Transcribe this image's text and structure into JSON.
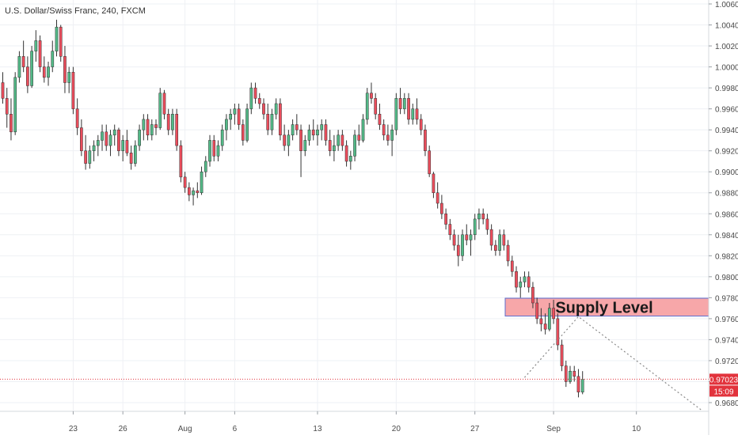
{
  "chart_data": {
    "type": "candlestick",
    "title": "U.S. Dollar/Swiss Franc, 240, FXCM",
    "symbol": "USDCHF",
    "timeframe": "240",
    "source": "FXCM",
    "x_ticks": [
      "23",
      "26",
      "Aug",
      "6",
      "13",
      "20",
      "27",
      "Sep",
      "10"
    ],
    "y_ticks": [
      "1.00600",
      "1.00400",
      "1.00200",
      "1.00000",
      "0.99800",
      "0.99600",
      "0.99400",
      "0.99200",
      "0.99000",
      "0.98800",
      "0.98600",
      "0.98400",
      "0.98200",
      "0.98000",
      "0.97800",
      "0.97600",
      "0.97400",
      "0.97200",
      "0.97000",
      "0.96800"
    ],
    "ylim": [
      0.9663,
      1.0063
    ],
    "grid": true,
    "current_price": 0.97023,
    "current_price_label": "0.97023",
    "countdown_label": "15:09",
    "annotation": {
      "label": "Supply Level",
      "price_low": 0.97625,
      "price_high": 0.97795
    },
    "projection": [
      {
        "bar": 126,
        "price": 0.9704
      },
      {
        "bar": 139,
        "price": 0.9762
      },
      {
        "bar": 169,
        "price": 0.9672
      }
    ],
    "colors": {
      "up": "#53b987",
      "down": "#eb4d5c",
      "supply_fill": "#f7a7a9",
      "supply_border": "#5b6dcf",
      "price_line": "#e2333c",
      "grid": "#eef0f4",
      "axis_text": "#4a4a4a"
    },
    "tick_bar_index": {
      "23": 17,
      "26": 29,
      "Aug": 44,
      "6": 56,
      "13": 76,
      "20": 95,
      "27": 114,
      "Sep": 133,
      "10": 153
    },
    "candles": [
      [
        0.9985,
        0.9995,
        0.9965,
        0.997
      ],
      [
        0.997,
        0.998,
        0.9942,
        0.9955
      ],
      [
        0.9955,
        0.997,
        0.993,
        0.9938
      ],
      [
        0.9938,
        0.9995,
        0.9935,
        0.999
      ],
      [
        0.999,
        1.0015,
        0.9985,
        1.001
      ],
      [
        1.001,
        1.0025,
        0.9995,
        1.0
      ],
      [
        1.0,
        1.001,
        0.9975,
        0.9982
      ],
      [
        0.9982,
        1.002,
        0.998,
        1.0015
      ],
      [
        1.0015,
        1.0035,
        1.0005,
        1.0025
      ],
      [
        1.0025,
        1.003,
        0.9995,
        1.0
      ],
      [
        1.0,
        1.001,
        0.9985,
        0.999
      ],
      [
        0.999,
        1.0005,
        0.9982,
        1.0
      ],
      [
        1.0,
        1.0025,
        0.9995,
        1.0015
      ],
      [
        1.0015,
        1.0045,
        1.001,
        1.0038
      ],
      [
        1.0038,
        1.004,
        1.0005,
        1.001
      ],
      [
        1.001,
        1.002,
        0.9975,
        0.9985
      ],
      [
        0.9985,
        1.0,
        0.9975,
        0.9995
      ],
      [
        0.9995,
        1.0,
        0.9955,
        0.996
      ],
      [
        0.996,
        0.997,
        0.9935,
        0.9942
      ],
      [
        0.9942,
        0.995,
        0.9915,
        0.992
      ],
      [
        0.992,
        0.9935,
        0.9902,
        0.9908
      ],
      [
        0.9908,
        0.9925,
        0.9903,
        0.992
      ],
      [
        0.992,
        0.993,
        0.991,
        0.9925
      ],
      [
        0.9925,
        0.9935,
        0.9915,
        0.993
      ],
      [
        0.993,
        0.9945,
        0.992,
        0.9938
      ],
      [
        0.9938,
        0.9945,
        0.992,
        0.9925
      ],
      [
        0.9925,
        0.994,
        0.9915,
        0.9935
      ],
      [
        0.9935,
        0.9945,
        0.9925,
        0.994
      ],
      [
        0.994,
        0.9942,
        0.9915,
        0.992
      ],
      [
        0.992,
        0.9935,
        0.991,
        0.993
      ],
      [
        0.993,
        0.994,
        0.9915,
        0.9918
      ],
      [
        0.9918,
        0.9925,
        0.9902,
        0.9908
      ],
      [
        0.9908,
        0.993,
        0.9905,
        0.9925
      ],
      [
        0.9925,
        0.9945,
        0.992,
        0.994
      ],
      [
        0.994,
        0.9955,
        0.993,
        0.995
      ],
      [
        0.995,
        0.9955,
        0.993,
        0.9935
      ],
      [
        0.9935,
        0.995,
        0.993,
        0.9945
      ],
      [
        0.9945,
        0.995,
        0.9935,
        0.9942
      ],
      [
        0.9942,
        0.998,
        0.994,
        0.9975
      ],
      [
        0.9975,
        0.9978,
        0.995,
        0.9955
      ],
      [
        0.9955,
        0.996,
        0.9935,
        0.994
      ],
      [
        0.994,
        0.996,
        0.9935,
        0.9955
      ],
      [
        0.9955,
        0.996,
        0.992,
        0.9925
      ],
      [
        0.9925,
        0.993,
        0.989,
        0.9895
      ],
      [
        0.9895,
        0.99,
        0.988,
        0.9885
      ],
      [
        0.9885,
        0.989,
        0.9872,
        0.9878
      ],
      [
        0.9878,
        0.9885,
        0.9868,
        0.9882
      ],
      [
        0.9882,
        0.989,
        0.9875,
        0.988
      ],
      [
        0.988,
        0.9905,
        0.9878,
        0.99
      ],
      [
        0.99,
        0.9915,
        0.9895,
        0.991
      ],
      [
        0.991,
        0.9935,
        0.9905,
        0.993
      ],
      [
        0.993,
        0.9935,
        0.991,
        0.9915
      ],
      [
        0.9915,
        0.993,
        0.991,
        0.9925
      ],
      [
        0.9925,
        0.9945,
        0.992,
        0.994
      ],
      [
        0.994,
        0.9955,
        0.993,
        0.995
      ],
      [
        0.995,
        0.996,
        0.994,
        0.9955
      ],
      [
        0.9955,
        0.9965,
        0.9945,
        0.996
      ],
      [
        0.996,
        0.9965,
        0.994,
        0.9945
      ],
      [
        0.9945,
        0.995,
        0.9925,
        0.993
      ],
      [
        0.993,
        0.9965,
        0.9928,
        0.996
      ],
      [
        0.996,
        0.9985,
        0.9955,
        0.998
      ],
      [
        0.998,
        0.9985,
        0.9965,
        0.997
      ],
      [
        0.997,
        0.9975,
        0.996,
        0.9965
      ],
      [
        0.9965,
        0.997,
        0.995,
        0.9955
      ],
      [
        0.9955,
        0.9965,
        0.9935,
        0.994
      ],
      [
        0.994,
        0.996,
        0.9935,
        0.9955
      ],
      [
        0.9955,
        0.997,
        0.995,
        0.9965
      ],
      [
        0.9965,
        0.997,
        0.993,
        0.9935
      ],
      [
        0.9935,
        0.9945,
        0.992,
        0.9925
      ],
      [
        0.9925,
        0.994,
        0.9915,
        0.9935
      ],
      [
        0.9935,
        0.995,
        0.993,
        0.9945
      ],
      [
        0.9945,
        0.9955,
        0.9935,
        0.994
      ],
      [
        0.994,
        0.9945,
        0.9895,
        0.992
      ],
      [
        0.992,
        0.9935,
        0.9915,
        0.993
      ],
      [
        0.993,
        0.9945,
        0.9925,
        0.994
      ],
      [
        0.994,
        0.995,
        0.993,
        0.9935
      ],
      [
        0.9935,
        0.9945,
        0.9925,
        0.994
      ],
      [
        0.994,
        0.995,
        0.993,
        0.9945
      ],
      [
        0.9945,
        0.995,
        0.9925,
        0.993
      ],
      [
        0.993,
        0.994,
        0.9915,
        0.992
      ],
      [
        0.992,
        0.9935,
        0.991,
        0.9925
      ],
      [
        0.9925,
        0.994,
        0.992,
        0.9935
      ],
      [
        0.9935,
        0.994,
        0.992,
        0.9925
      ],
      [
        0.9925,
        0.993,
        0.9905,
        0.991
      ],
      [
        0.991,
        0.992,
        0.9902,
        0.9915
      ],
      [
        0.9915,
        0.994,
        0.991,
        0.9935
      ],
      [
        0.9935,
        0.9945,
        0.9925,
        0.993
      ],
      [
        0.993,
        0.9955,
        0.9928,
        0.995
      ],
      [
        0.995,
        0.998,
        0.9945,
        0.9975
      ],
      [
        0.9975,
        0.9985,
        0.9965,
        0.997
      ],
      [
        0.997,
        0.9975,
        0.995,
        0.9955
      ],
      [
        0.9955,
        0.9965,
        0.994,
        0.9945
      ],
      [
        0.9945,
        0.995,
        0.993,
        0.9935
      ],
      [
        0.9935,
        0.9945,
        0.9925,
        0.993
      ],
      [
        0.993,
        0.9945,
        0.9915,
        0.994
      ],
      [
        0.994,
        0.9975,
        0.9935,
        0.997
      ],
      [
        0.997,
        0.998,
        0.9955,
        0.996
      ],
      [
        0.996,
        0.9975,
        0.9955,
        0.997
      ],
      [
        0.997,
        0.9975,
        0.9945,
        0.995
      ],
      [
        0.995,
        0.9965,
        0.9945,
        0.996
      ],
      [
        0.996,
        0.997,
        0.9945,
        0.995
      ],
      [
        0.995,
        0.9955,
        0.9935,
        0.994
      ],
      [
        0.994,
        0.9945,
        0.9915,
        0.992
      ],
      [
        0.992,
        0.9925,
        0.9895,
        0.9898
      ],
      [
        0.9898,
        0.99,
        0.9875,
        0.988
      ],
      [
        0.988,
        0.989,
        0.9865,
        0.987
      ],
      [
        0.987,
        0.9878,
        0.9855,
        0.986
      ],
      [
        0.986,
        0.9865,
        0.9845,
        0.985
      ],
      [
        0.985,
        0.9855,
        0.9835,
        0.984
      ],
      [
        0.984,
        0.9845,
        0.9825,
        0.983
      ],
      [
        0.983,
        0.984,
        0.981,
        0.982
      ],
      [
        0.982,
        0.9845,
        0.9815,
        0.984
      ],
      [
        0.984,
        0.985,
        0.983,
        0.9835
      ],
      [
        0.9835,
        0.9845,
        0.982,
        0.984
      ],
      [
        0.984,
        0.986,
        0.9835,
        0.9855
      ],
      [
        0.9855,
        0.9865,
        0.9845,
        0.986
      ],
      [
        0.986,
        0.9865,
        0.985,
        0.9855
      ],
      [
        0.9855,
        0.986,
        0.984,
        0.9845
      ],
      [
        0.9845,
        0.985,
        0.9825,
        0.983
      ],
      [
        0.983,
        0.9835,
        0.982,
        0.9825
      ],
      [
        0.9825,
        0.9845,
        0.982,
        0.984
      ],
      [
        0.984,
        0.9845,
        0.9825,
        0.983
      ],
      [
        0.983,
        0.9835,
        0.981,
        0.9815
      ],
      [
        0.9815,
        0.982,
        0.98,
        0.9805
      ],
      [
        0.9805,
        0.981,
        0.9785,
        0.979
      ],
      [
        0.979,
        0.98,
        0.978,
        0.9795
      ],
      [
        0.9795,
        0.9805,
        0.979,
        0.98
      ],
      [
        0.98,
        0.9805,
        0.9785,
        0.979
      ],
      [
        0.979,
        0.9795,
        0.977,
        0.9775
      ],
      [
        0.9775,
        0.978,
        0.9755,
        0.976
      ],
      [
        0.976,
        0.977,
        0.9748,
        0.9755
      ],
      [
        0.9755,
        0.9765,
        0.9745,
        0.975
      ],
      [
        0.975,
        0.9775,
        0.9748,
        0.977
      ],
      [
        0.977,
        0.9778,
        0.9755,
        0.976
      ],
      [
        0.976,
        0.9765,
        0.973,
        0.9735
      ],
      [
        0.9735,
        0.974,
        0.971,
        0.9715
      ],
      [
        0.9715,
        0.972,
        0.9695,
        0.97
      ],
      [
        0.97,
        0.9715,
        0.9698,
        0.971
      ],
      [
        0.971,
        0.9715,
        0.97,
        0.9705
      ],
      [
        0.9705,
        0.9712,
        0.9685,
        0.969
      ],
      [
        0.969,
        0.971,
        0.9688,
        0.97023
      ]
    ]
  }
}
